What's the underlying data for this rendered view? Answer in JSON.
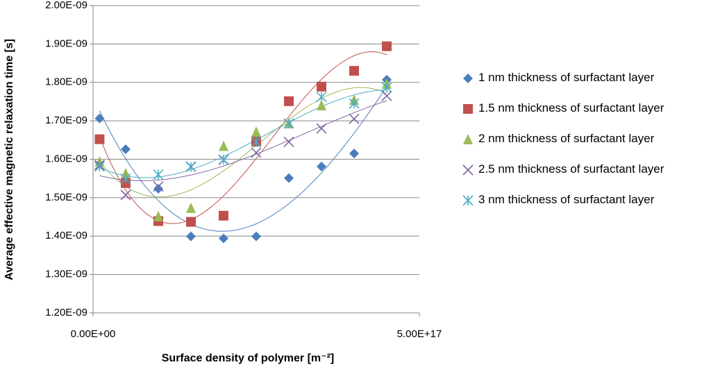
{
  "chart_data": {
    "type": "scatter",
    "x_label": "Surface density of polymer [m⁻²]",
    "y_label": "Average effective magnetic relaxation time [s]",
    "x": [
      1e+16,
      5e+16,
      1e+17,
      1.5e+17,
      2e+17,
      2.5e+17,
      3e+17,
      3.5e+17,
      4e+17,
      4.5e+17
    ],
    "series": [
      {
        "name": "1 nm thickness of surfactant layer",
        "color": "#4a7ebb",
        "marker": "diamond",
        "values": [
          1.706e-09,
          1.626e-09,
          1.523e-09,
          1.399e-09,
          1.394e-09,
          1.399e-09,
          1.551e-09,
          1.581e-09,
          1.615e-09,
          1.807e-09
        ]
      },
      {
        "name": "1.5 nm thickness of surfactant layer",
        "color": "#c0504d",
        "marker": "square",
        "values": [
          1.652e-09,
          1.538e-09,
          1.439e-09,
          1.437e-09,
          1.453e-09,
          1.646e-09,
          1.751e-09,
          1.789e-09,
          1.83e-09,
          1.894e-09
        ]
      },
      {
        "name": "2 nm thickness of surfactant layer",
        "color": "#9bbb59",
        "marker": "triangle",
        "values": [
          1.594e-09,
          1.563e-09,
          1.451e-09,
          1.473e-09,
          1.634e-09,
          1.671e-09,
          1.693e-09,
          1.74e-09,
          1.754e-09,
          1.796e-09
        ]
      },
      {
        "name": "2.5 nm thickness of surfactant layer",
        "color": "#8064a2",
        "marker": "x",
        "values": [
          1.585e-09,
          1.507e-09,
          1.529e-09,
          1.581e-09,
          1.598e-09,
          1.617e-09,
          1.645e-09,
          1.68e-09,
          1.705e-09,
          1.765e-09
        ]
      },
      {
        "name": "3 nm thickness of surfactant layer",
        "color": "#4bacc6",
        "marker": "star",
        "values": [
          1.581e-09,
          1.549e-09,
          1.56e-09,
          1.58e-09,
          1.599e-09,
          1.645e-09,
          1.693e-09,
          1.762e-09,
          1.745e-09,
          1.787e-09
        ]
      }
    ],
    "trendline": "polynomial",
    "xlim": [
      0,
      5e+17
    ],
    "xticks": [
      {
        "value": 0,
        "label": "0.00E+00"
      },
      {
        "value": 5e+17,
        "label": "5.00E+17"
      }
    ],
    "ylim": [
      1.2e-09,
      2e-09
    ],
    "yticks": [
      {
        "value": 1.2e-09,
        "label": "1.20E-09"
      },
      {
        "value": 1.3e-09,
        "label": "1.30E-09"
      },
      {
        "value": 1.4e-09,
        "label": "1.40E-09"
      },
      {
        "value": 1.5e-09,
        "label": "1.50E-09"
      },
      {
        "value": 1.6e-09,
        "label": "1.60E-09"
      },
      {
        "value": 1.7e-09,
        "label": "1.70E-09"
      },
      {
        "value": 1.8e-09,
        "label": "1.80E-09"
      },
      {
        "value": 1.9e-09,
        "label": "1.90E-09"
      },
      {
        "value": 2e-09,
        "label": "2.00E-09"
      }
    ],
    "grid": true,
    "legend": "right"
  }
}
